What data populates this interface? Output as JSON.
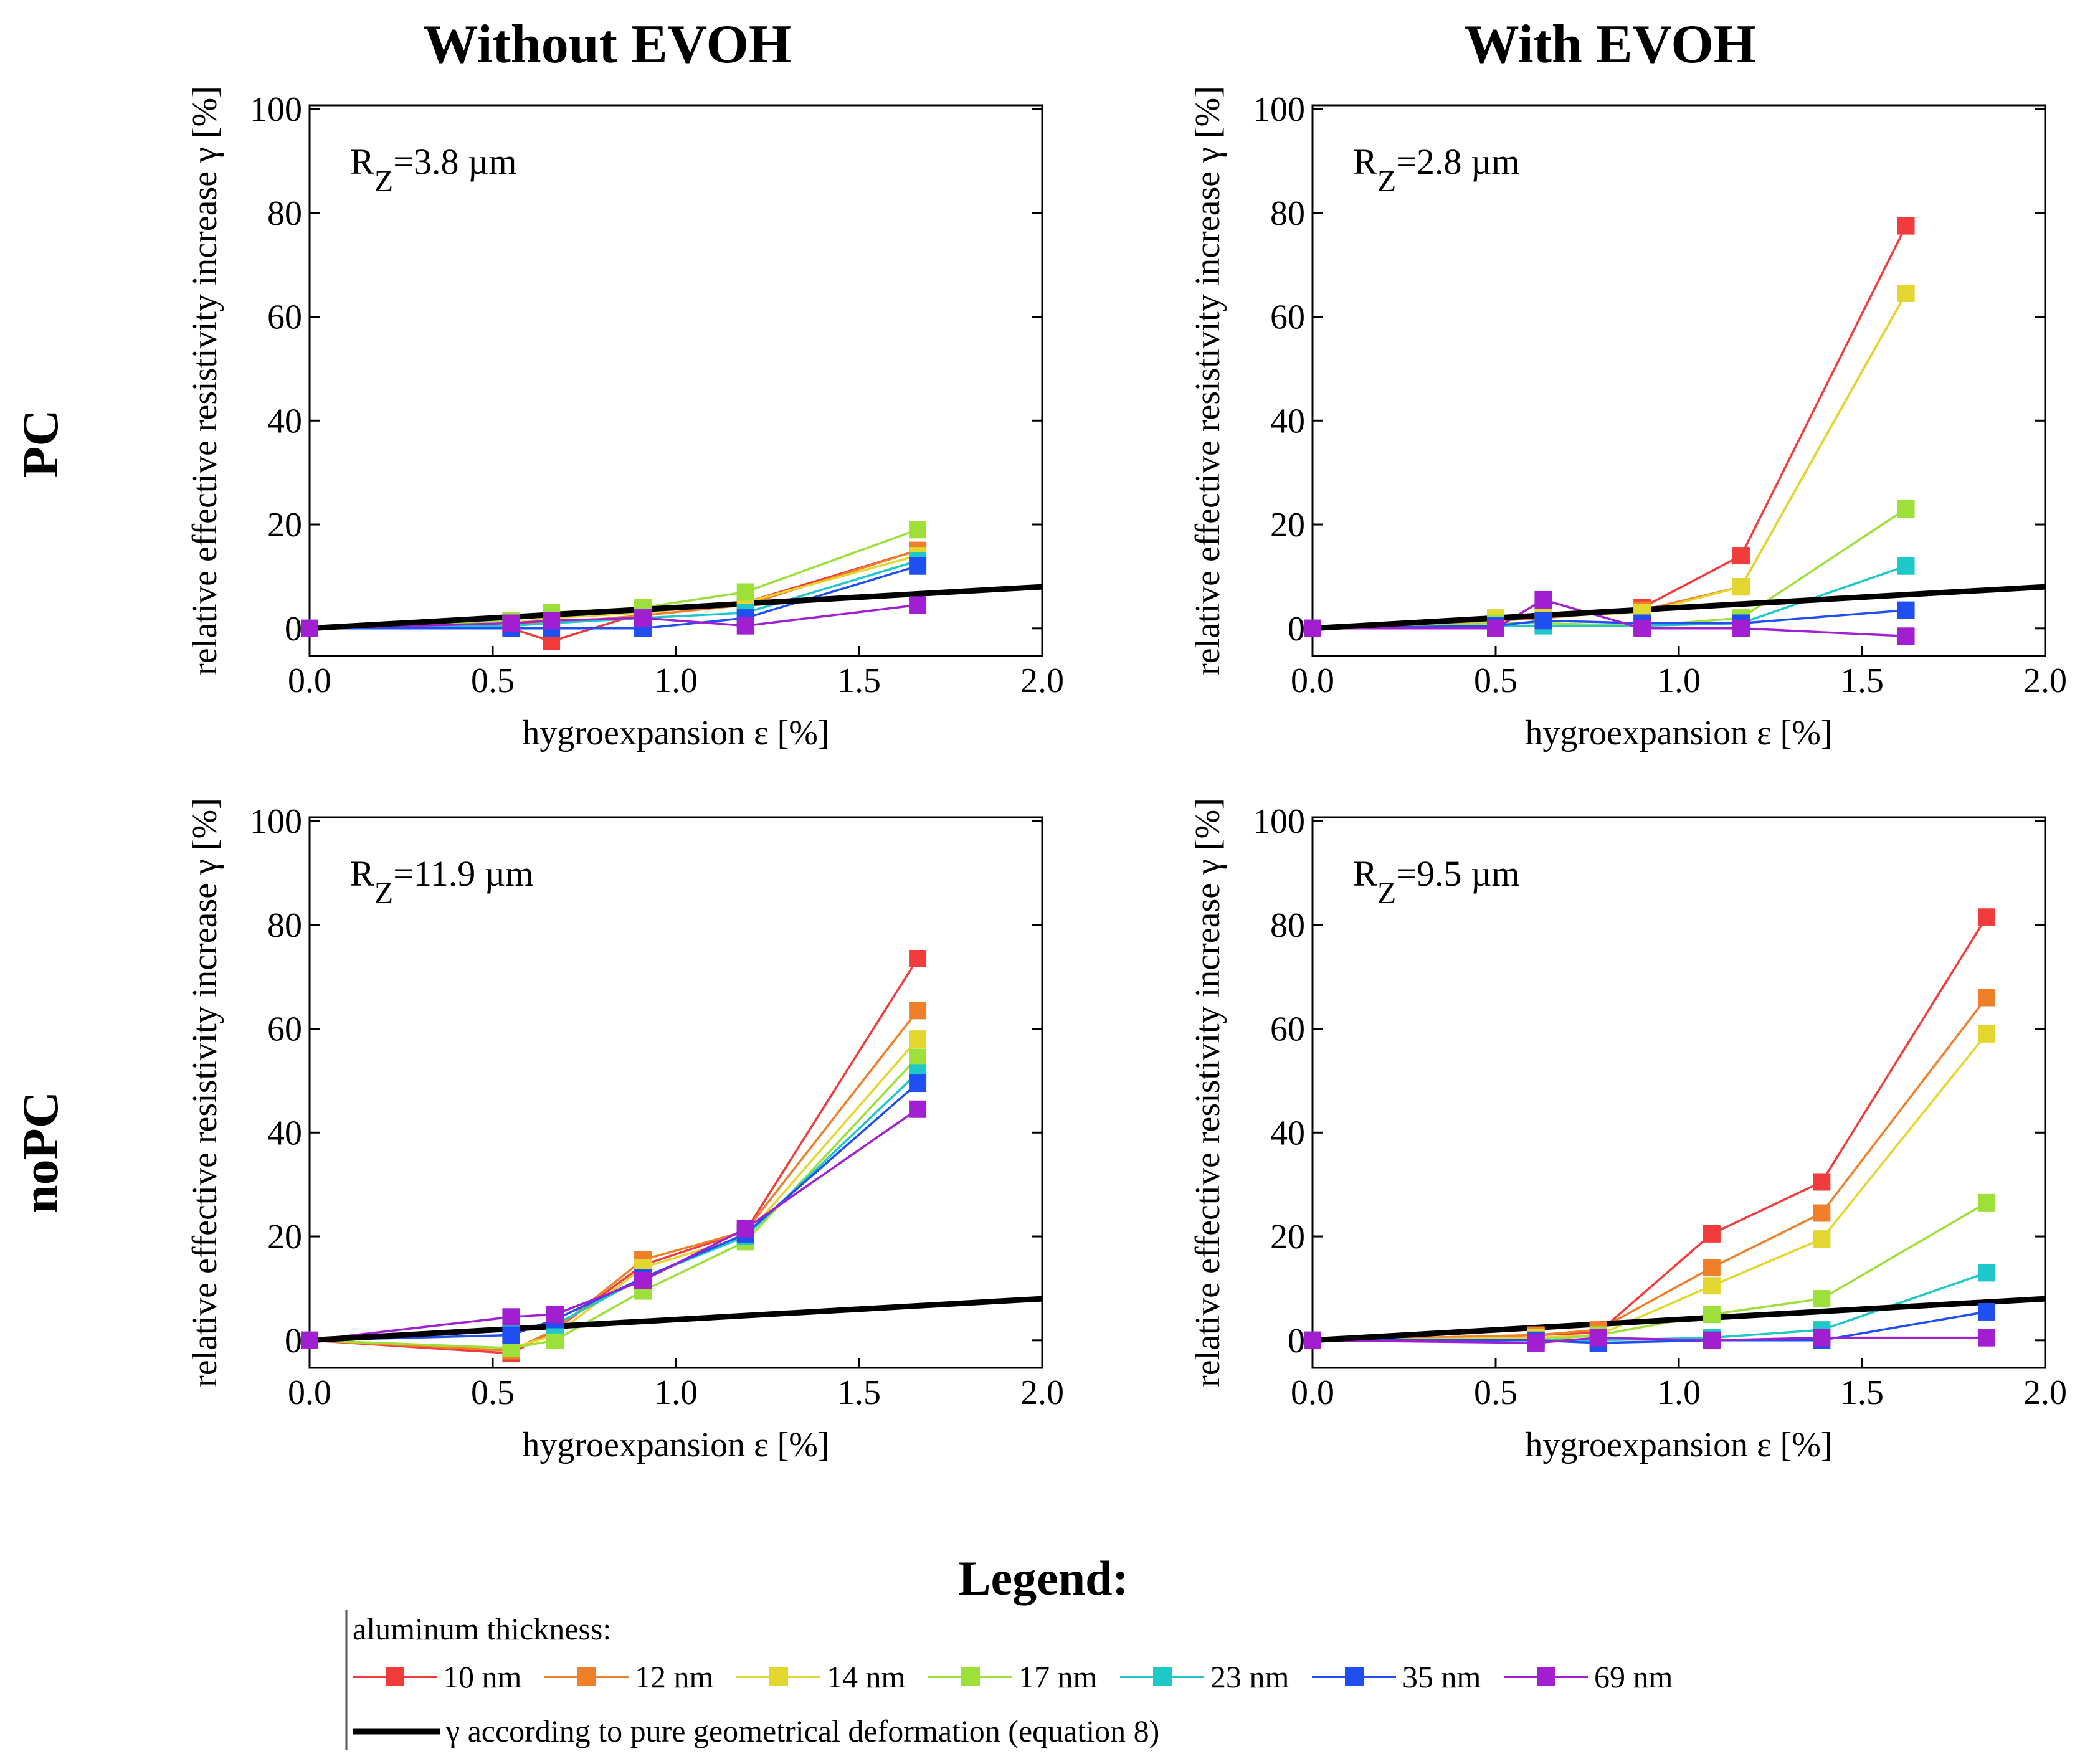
{
  "headers": {
    "columns": [
      "Without EVOH",
      "With EVOH"
    ],
    "rows": [
      "PC",
      "noPC"
    ]
  },
  "legend": {
    "title": "Legend:",
    "subtitle": "aluminum thickness:",
    "series": [
      {
        "label": "10 nm",
        "color": "#f23b3b"
      },
      {
        "label": "12 nm",
        "color": "#f07f2a"
      },
      {
        "label": "14 nm",
        "color": "#e3d62e"
      },
      {
        "label": "17 nm",
        "color": "#9ee03a"
      },
      {
        "label": "23 nm",
        "color": "#1ec8c8"
      },
      {
        "label": "35 nm",
        "color": "#1f4ff0"
      },
      {
        "label": "69 nm",
        "color": "#a11ed1"
      }
    ],
    "reference_label": "γ according to pure geometrical deformation (equation 8)",
    "reference_color": "#000000"
  },
  "chart_data": [
    {
      "type": "line",
      "panel": "PC / Without EVOH",
      "annotation": {
        "prefix": "R",
        "sub": "Z",
        "value": "=3.8 µm"
      },
      "xlabel": "hygroexpansion ε [%]",
      "ylabel": "relative effective resistivity increase γ [%]",
      "xlim": [
        0,
        2
      ],
      "ylim": [
        0,
        100
      ],
      "xticks": [
        "0.0",
        "0.5",
        "1.0",
        "1.5",
        "2.0"
      ],
      "yticks": [
        "0",
        "20",
        "40",
        "60",
        "80",
        "100"
      ],
      "reference": [
        [
          0,
          0
        ],
        [
          2,
          8
        ]
      ],
      "x": [
        0,
        0.55,
        0.66,
        0.91,
        1.19,
        1.66
      ],
      "series": [
        {
          "name": "10 nm",
          "values": [
            0,
            0,
            -2.5,
            3,
            5,
            15
          ]
        },
        {
          "name": "12 nm",
          "values": [
            0,
            1,
            1,
            2.5,
            4.5,
            15
          ]
        },
        {
          "name": "14 nm",
          "values": [
            0,
            1,
            2,
            3,
            5,
            14
          ]
        },
        {
          "name": "17 nm",
          "values": [
            0,
            1.5,
            3,
            4,
            7,
            19
          ]
        },
        {
          "name": "23 nm",
          "values": [
            0,
            0.5,
            1,
            2,
            3,
            13
          ]
        },
        {
          "name": "35 nm",
          "values": [
            0,
            0,
            0,
            0,
            2,
            12
          ]
        },
        {
          "name": "69 nm",
          "values": [
            0,
            1,
            1.5,
            2,
            0.5,
            4.5
          ]
        }
      ]
    },
    {
      "type": "line",
      "panel": "PC / With EVOH",
      "annotation": {
        "prefix": "R",
        "sub": "Z",
        "value": "=2.8 µm"
      },
      "xlabel": "hygroexpansion ε [%]",
      "ylabel": "relative effective resistivity increase γ [%]",
      "xlim": [
        0,
        2
      ],
      "ylim": [
        0,
        100
      ],
      "xticks": [
        "0.0",
        "0.5",
        "1.0",
        "1.5",
        "2.0"
      ],
      "yticks": [
        "0",
        "20",
        "40",
        "60",
        "80",
        "100"
      ],
      "reference": [
        [
          0,
          0
        ],
        [
          2,
          8
        ]
      ],
      "x": [
        0,
        0.5,
        0.63,
        0.9,
        1.17,
        1.62
      ],
      "series": [
        {
          "name": "10 nm",
          "values": [
            0,
            1.5,
            2,
            4,
            14,
            77.5
          ]
        },
        {
          "name": "12 nm",
          "values": [
            0,
            1.5,
            2,
            3.5,
            8,
            64.5
          ]
        },
        {
          "name": "14 nm",
          "values": [
            0,
            2,
            2.5,
            3,
            8,
            64.5
          ]
        },
        {
          "name": "17 nm",
          "values": [
            0,
            1,
            1,
            0.5,
            2,
            23
          ]
        },
        {
          "name": "23 nm",
          "values": [
            0,
            0.5,
            0.5,
            0.5,
            1,
            12
          ]
        },
        {
          "name": "35 nm",
          "values": [
            0,
            0.5,
            1.5,
            1,
            1,
            3.5
          ]
        },
        {
          "name": "69 nm",
          "values": [
            0,
            0,
            5.5,
            0,
            0,
            -1.5
          ]
        }
      ]
    },
    {
      "type": "line",
      "panel": "noPC / Without EVOH",
      "annotation": {
        "prefix": "R",
        "sub": "Z",
        "value": "=11.9 µm"
      },
      "xlabel": "hygroexpansion ε [%]",
      "ylabel": "relative effective resistivity increase γ [%]",
      "xlim": [
        0,
        2
      ],
      "ylim": [
        0,
        100
      ],
      "xticks": [
        "0.0",
        "0.5",
        "1.0",
        "1.5",
        "2.0"
      ],
      "yticks": [
        "0",
        "20",
        "40",
        "60",
        "80",
        "100"
      ],
      "reference": [
        [
          0,
          0
        ],
        [
          2,
          8
        ]
      ],
      "x": [
        0,
        0.55,
        0.67,
        0.91,
        1.19,
        1.66
      ],
      "series": [
        {
          "name": "10 nm",
          "values": [
            0,
            -2.5,
            2,
            14.5,
            21,
            73.5
          ]
        },
        {
          "name": "12 nm",
          "values": [
            0,
            -2,
            2,
            15.5,
            21,
            63.5
          ]
        },
        {
          "name": "14 nm",
          "values": [
            0,
            -1.5,
            1,
            14,
            20,
            58
          ]
        },
        {
          "name": "17 nm",
          "values": [
            0,
            -1.5,
            0,
            9.5,
            19,
            54.5
          ]
        },
        {
          "name": "23 nm",
          "values": [
            0,
            2,
            3,
            12,
            20,
            51.5
          ]
        },
        {
          "name": "35 nm",
          "values": [
            0,
            1,
            4,
            12,
            20.5,
            49.5
          ]
        },
        {
          "name": "69 nm",
          "values": [
            0,
            4.5,
            5,
            11.5,
            21.5,
            44.5
          ]
        }
      ]
    },
    {
      "type": "line",
      "panel": "noPC / With EVOH",
      "annotation": {
        "prefix": "R",
        "sub": "Z",
        "value": "=9.5 µm"
      },
      "xlabel": "hygroexpansion ε [%]",
      "ylabel": "relative effective resistivity increase γ [%]",
      "xlim": [
        0,
        2
      ],
      "ylim": [
        0,
        100
      ],
      "xticks": [
        "0.0",
        "0.5",
        "1.0",
        "1.5",
        "2.0"
      ],
      "yticks": [
        "0",
        "20",
        "40",
        "60",
        "80",
        "100"
      ],
      "reference": [
        [
          0,
          0
        ],
        [
          2,
          8
        ]
      ],
      "x": [
        0,
        0.61,
        0.78,
        1.09,
        1.39,
        1.84
      ],
      "series": [
        {
          "name": "10 nm",
          "values": [
            0,
            1,
            1.5,
            20.5,
            30.5,
            81.5
          ]
        },
        {
          "name": "12 nm",
          "values": [
            0,
            1,
            2,
            14,
            24.5,
            66
          ]
        },
        {
          "name": "14 nm",
          "values": [
            0,
            0.5,
            1,
            10.5,
            19.5,
            59
          ]
        },
        {
          "name": "17 nm",
          "values": [
            0,
            0,
            1,
            5,
            8,
            26.5
          ]
        },
        {
          "name": "23 nm",
          "values": [
            0,
            0,
            0,
            0.5,
            2,
            13
          ]
        },
        {
          "name": "35 nm",
          "values": [
            0,
            0,
            -0.5,
            0,
            0,
            5.5
          ]
        },
        {
          "name": "69 nm",
          "values": [
            0,
            -0.5,
            0.5,
            0,
            0.5,
            0.5
          ]
        }
      ]
    }
  ]
}
